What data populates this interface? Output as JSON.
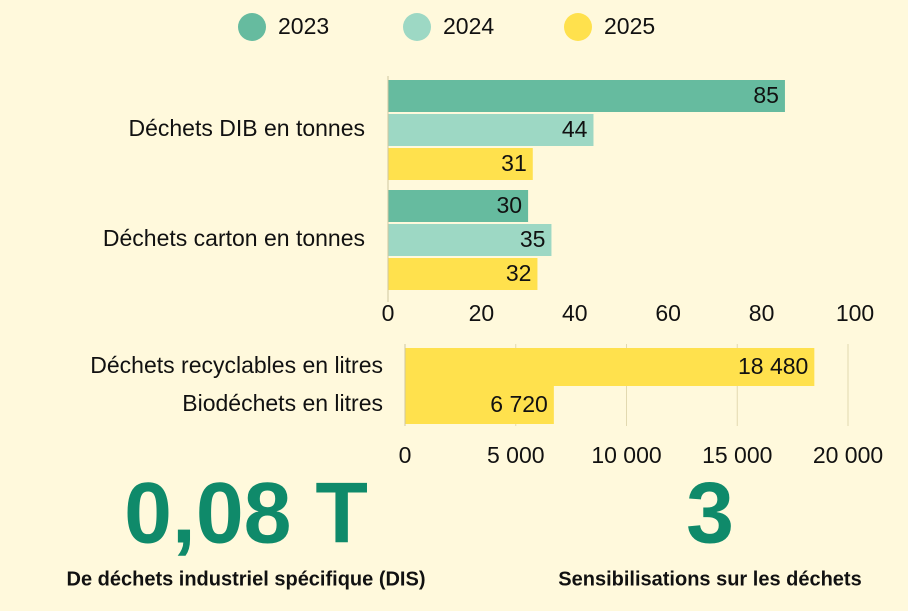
{
  "chart_data": [
    {
      "type": "hbar",
      "legend": "top",
      "categories": [
        "Déchets DIB en tonnes",
        "Déchets carton en tonnes"
      ],
      "series": [
        {
          "name": "2023",
          "color": "#66bb9f",
          "values": [
            85,
            30
          ]
        },
        {
          "name": "2024",
          "color": "#9dd8c4",
          "values": [
            44,
            35
          ]
        },
        {
          "name": "2025",
          "color": "#ffe14d",
          "values": [
            31,
            32
          ]
        }
      ],
      "xlim": [
        0,
        100
      ],
      "xticks": [
        0,
        20,
        40,
        60,
        80,
        100
      ],
      "grid": false
    },
    {
      "type": "hbar",
      "categories": [
        "Déchets recyclables en litres",
        "Biodéchets en litres"
      ],
      "values": [
        18480,
        6720
      ],
      "value_labels": [
        "18 480",
        "6 720"
      ],
      "color": "#ffe14d",
      "xlim": [
        0,
        20000
      ],
      "xticks": [
        0,
        {
          "value": 5000,
          "label": "5 000"
        },
        {
          "value": 10000,
          "label": "10 000"
        },
        {
          "value": 15000,
          "label": "15 000"
        },
        {
          "value": 20000,
          "label": "20 000"
        }
      ],
      "grid": true
    }
  ],
  "kpis": [
    {
      "value": "0,08 T",
      "label": "De déchets industriel spécifique (DIS)"
    },
    {
      "value": "3",
      "label": "Sensibilisations sur les déchets"
    }
  ]
}
